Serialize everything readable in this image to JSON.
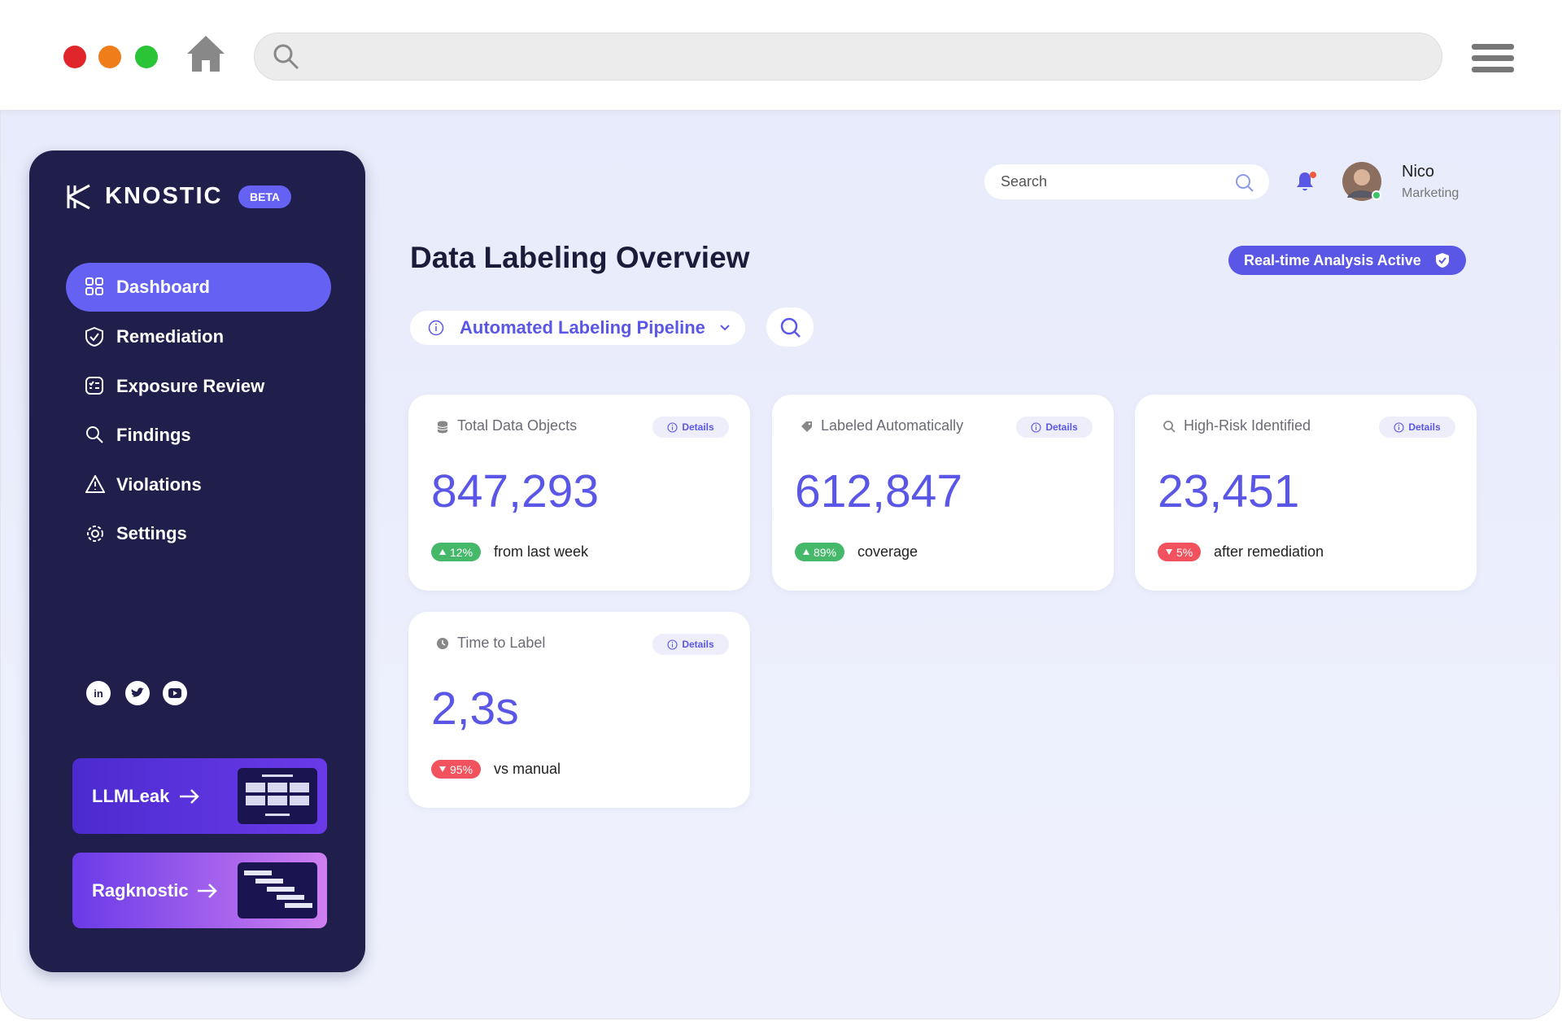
{
  "sidebar": {
    "brand": "KNOSTIC",
    "badge": "BETA",
    "nav": [
      "Dashboard",
      "Remediation",
      "Exposure Review",
      "Findings",
      "Violations",
      "Settings"
    ],
    "promos": [
      "LLMLeak",
      "Ragknostic"
    ]
  },
  "header": {
    "search_placeholder": "Search",
    "user_name": "Nico",
    "user_role": "Marketing"
  },
  "page": {
    "title": "Data Labeling Overview",
    "status": "Real-time Analysis Active",
    "pipeline": "Automated Labeling Pipeline"
  },
  "cards": [
    {
      "label": "Total Data Objects",
      "details": "Details",
      "value": "847,293",
      "change": "12%",
      "direction": "up",
      "note": "from last week"
    },
    {
      "label": "Labeled Automatically",
      "details": "Details",
      "value": "612,847",
      "change": "89%",
      "direction": "up",
      "note": "coverage"
    },
    {
      "label": "High-Risk Identified",
      "details": "Details",
      "value": "23,451",
      "change": "5%",
      "direction": "down",
      "note": "after remediation"
    },
    {
      "label": "Time to Label",
      "details": "Details",
      "value": "2,3s",
      "change": "95%",
      "direction": "down",
      "note": "vs manual"
    }
  ]
}
